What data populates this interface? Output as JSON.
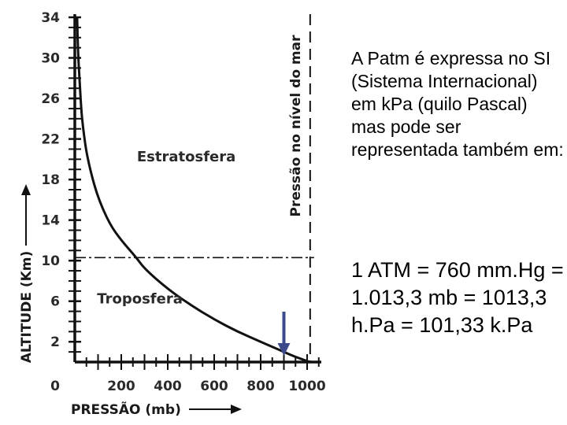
{
  "chart_data": {
    "type": "line",
    "xlabel": "PRESSÃO (mb)",
    "ylabel": "ALTITUDE (Km)",
    "x_ticks": [
      0,
      200,
      400,
      600,
      800,
      1000
    ],
    "y_ticks": [
      2,
      6,
      10,
      14,
      18,
      22,
      26,
      30,
      34
    ],
    "xlim": [
      -20,
      1050
    ],
    "ylim": [
      0,
      34
    ],
    "x": [
      1013,
      950,
      900,
      850,
      800,
      700,
      600,
      500,
      400,
      300,
      265,
      200,
      150,
      100,
      70,
      50,
      40,
      30,
      25
    ],
    "y": [
      0,
      0.5,
      1,
      1.5,
      2,
      3,
      4.2,
      5.6,
      7.2,
      9.2,
      10.3,
      12,
      13.6,
      16.2,
      18.6,
      20.7,
      22.3,
      24.2,
      26
    ],
    "extension": {
      "x": [
        25,
        20,
        15,
        12,
        10
      ],
      "y": [
        26,
        28,
        30,
        32,
        34
      ]
    },
    "regions": [
      {
        "label": "Estratosfera",
        "x": 480,
        "y": 19.8
      },
      {
        "label": "Troposfera",
        "x": 280,
        "y": 5.8
      }
    ],
    "tropopause_altitude": 10.3,
    "sea_level_label": "Pressão no nível do mar",
    "sea_level_pressure": 1013,
    "marker_pressure": 900,
    "grid": false,
    "colors": {
      "curve": "#111111",
      "arrow": "#3a4a8c",
      "axis": "#111111"
    }
  },
  "side": {
    "paragraph": "A Patm é expressa no SI (Sistema Internacional) em kPa (quilo Pascal) mas pode ser representada também em:",
    "conversion": "1 ATM = 760 mm.Hg = 1.013,3 mb = 1013,3 h.Pa = 101,33 k.Pa"
  }
}
